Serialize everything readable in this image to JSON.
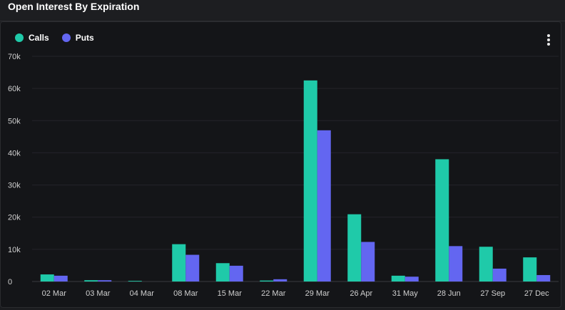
{
  "header": {
    "title": "Open Interest By Expiration"
  },
  "legend": {
    "items": [
      {
        "label": "Calls",
        "color": "#1fcaa9"
      },
      {
        "label": "Puts",
        "color": "#6366f1"
      }
    ]
  },
  "menu": {
    "icon": "more-vertical-icon"
  },
  "chart_data": {
    "type": "bar",
    "title": "Open Interest By Expiration",
    "categories": [
      "02 Mar",
      "03 Mar",
      "04 Mar",
      "08 Mar",
      "15 Mar",
      "22 Mar",
      "29 Mar",
      "26 Apr",
      "31 May",
      "28 Jun",
      "27 Sep",
      "27 Dec"
    ],
    "series": [
      {
        "name": "Calls",
        "color": "#1fcaa9",
        "values": [
          2200,
          400,
          200,
          11600,
          5700,
          300,
          62500,
          20900,
          1800,
          38000,
          10800,
          7500
        ]
      },
      {
        "name": "Puts",
        "color": "#6366f1",
        "values": [
          1800,
          400,
          0,
          8300,
          4900,
          700,
          47000,
          12300,
          1500,
          11000,
          4000,
          2000
        ]
      }
    ],
    "ylim": [
      0,
      70000
    ],
    "yticks": [
      "0",
      "10k",
      "20k",
      "30k",
      "40k",
      "50k",
      "60k",
      "70k"
    ],
    "grid": true,
    "legend_position": "top-left"
  }
}
